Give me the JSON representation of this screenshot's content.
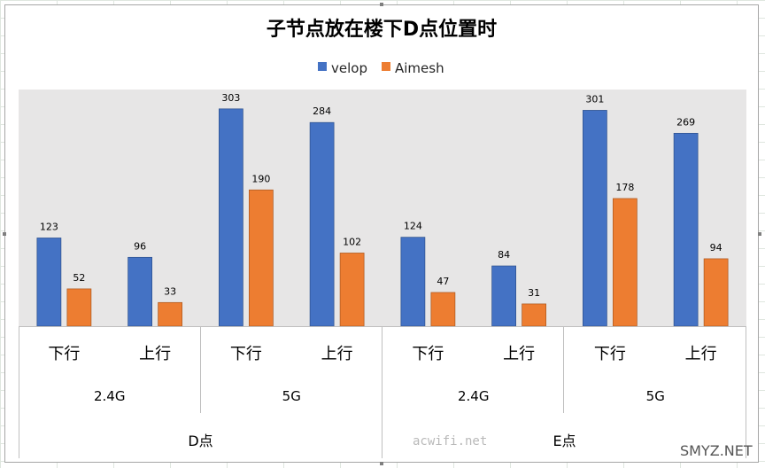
{
  "chart_data": {
    "type": "bar",
    "title": "子节点放在楼下D点位置时",
    "legend_position": "top",
    "series": [
      {
        "name": "velop",
        "color": "#4472C4",
        "values": [
          123,
          96,
          303,
          284,
          124,
          84,
          301,
          269
        ]
      },
      {
        "name": "Aimesh",
        "color": "#ED7D31",
        "values": [
          52,
          33,
          190,
          102,
          47,
          31,
          178,
          94
        ]
      }
    ],
    "categories": [
      "下行",
      "上行",
      "下行",
      "上行",
      "下行",
      "上行",
      "下行",
      "上行"
    ],
    "band_labels": [
      "2.4G",
      "5G",
      "2.4G",
      "5G"
    ],
    "location_labels": [
      "D点",
      "E点"
    ],
    "ylim": [
      0,
      330
    ],
    "plot_background": "#E7E6E6",
    "grid": false
  },
  "watermarks": {
    "acwifi": "acwifi.net",
    "smyz": "SMYZ.NET"
  }
}
